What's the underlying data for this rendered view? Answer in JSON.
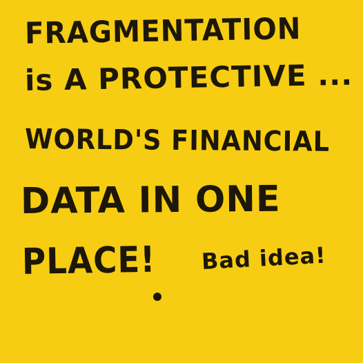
{
  "note": {
    "background_color": "#f6cd12",
    "ink_color": "#1d1709",
    "lines": [
      "FRAGMENTATION",
      "is A PROTECTIVE ...",
      "WORLD'S FINANCIAL",
      "DATA IN ONE",
      "PLACE!",
      "Bad idea!"
    ]
  }
}
